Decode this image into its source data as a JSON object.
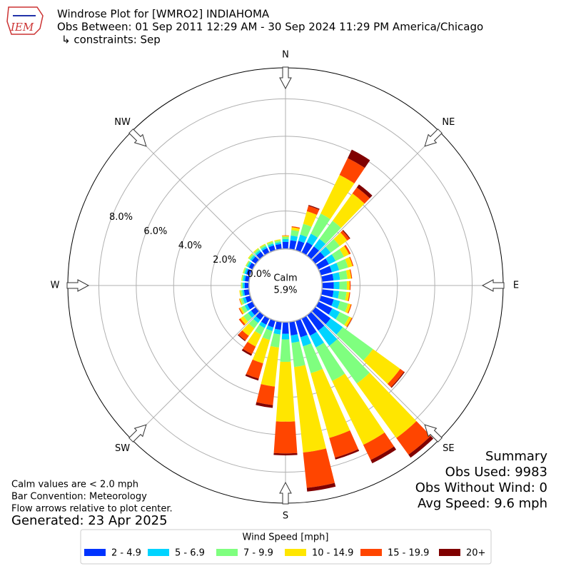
{
  "chart_data": {
    "type": "windrose",
    "title": "Windrose Plot for [WMRO2] INDIAHOMA",
    "subtitle": "Obs Between: 01 Sep 2011 12:29 AM - 30 Sep 2024 11:29 PM America/Chicago",
    "constraints": "↳ constraints: Sep",
    "logo": "IEM",
    "directions": [
      {
        "label": "N",
        "value": 0
      },
      {
        "label": "NE",
        "value": 45
      },
      {
        "label": "E",
        "value": 90
      },
      {
        "label": "SE",
        "value": 135
      },
      {
        "label": "S",
        "value": 180
      },
      {
        "label": "SW",
        "value": 225
      },
      {
        "label": "W",
        "value": 270
      },
      {
        "label": "NW",
        "value": 315
      }
    ],
    "x": [
      0,
      10,
      20,
      30,
      40,
      50,
      60,
      70,
      80,
      90,
      100,
      110,
      120,
      130,
      140,
      150,
      160,
      170,
      180,
      190,
      200,
      210,
      220,
      230,
      240,
      250,
      260,
      270,
      280,
      290,
      300,
      310,
      320,
      330,
      340,
      350
    ],
    "rlim": [
      0,
      9.66
    ],
    "rticks": [
      {
        "value": 0,
        "label": "0.0%"
      },
      {
        "value": 2,
        "label": "2.0%"
      },
      {
        "value": 4,
        "label": "4.0%"
      },
      {
        "value": 6,
        "label": "6.0%"
      },
      {
        "value": 8,
        "label": "8.0%"
      }
    ],
    "grid": true,
    "legend_title": "Wind Speed [mph]",
    "series": [
      {
        "name": "2 - 4.9",
        "color": "#0033ff",
        "values": [
          0.35,
          0.45,
          0.5,
          0.6,
          0.6,
          0.6,
          0.6,
          0.6,
          0.6,
          0.6,
          0.6,
          0.7,
          0.8,
          1.0,
          1.0,
          1.0,
          0.9,
          0.7,
          0.6,
          0.4,
          0.35,
          0.35,
          0.3,
          0.3,
          0.3,
          0.25,
          0.25,
          0.2,
          0.2,
          0.2,
          0.2,
          0.25,
          0.25,
          0.25,
          0.25,
          0.25
        ]
      },
      {
        "name": "5 - 6.9",
        "color": "#00d4ff",
        "values": [
          0.15,
          0.25,
          0.35,
          0.5,
          0.5,
          0.4,
          0.4,
          0.4,
          0.35,
          0.3,
          0.3,
          0.35,
          0.45,
          0.8,
          1.0,
          0.7,
          0.5,
          0.4,
          0.3,
          0.25,
          0.2,
          0.2,
          0.2,
          0.2,
          0.15,
          0.15,
          0.1,
          0.1,
          0.1,
          0.1,
          0.1,
          0.1,
          0.1,
          0.1,
          0.1,
          0.1
        ]
      },
      {
        "name": "7 - 9.9",
        "color": "#7fff7f",
        "values": [
          0.12,
          0.3,
          0.6,
          1.2,
          1.2,
          0.6,
          0.5,
          0.5,
          0.4,
          0.4,
          0.4,
          0.45,
          0.55,
          2.0,
          2.5,
          2.0,
          1.5,
          1.3,
          1.2,
          0.7,
          0.5,
          0.4,
          0.35,
          0.3,
          0.2,
          0.12,
          0.1,
          0.07,
          0.07,
          0.07,
          0.07,
          0.1,
          0.1,
          0.1,
          0.1,
          0.1
        ]
      },
      {
        "name": "10 - 14.9",
        "color": "#ffe600",
        "values": [
          0.06,
          0.15,
          0.7,
          2.3,
          1.8,
          0.5,
          0.3,
          0.25,
          0.2,
          0.15,
          0.15,
          0.15,
          0.15,
          1.8,
          3.6,
          3.8,
          3.6,
          4.6,
          3.2,
          2.1,
          1.3,
          0.7,
          0.5,
          0.2,
          0.1,
          0.06,
          0.05,
          0.03,
          0.03,
          0.03,
          0.03,
          0.05,
          0.05,
          0.05,
          0.05,
          0.05
        ]
      },
      {
        "name": "15 - 19.9",
        "color": "#ff4500",
        "values": [
          0.02,
          0.05,
          0.3,
          1.0,
          0.4,
          0.15,
          0.1,
          0.05,
          0.05,
          0.05,
          0.05,
          0.05,
          0.05,
          0.25,
          1.1,
          0.9,
          1.1,
          1.9,
          1.7,
          1.0,
          0.85,
          0.45,
          0.3,
          0.1,
          0.05,
          0.02,
          0,
          0,
          0,
          0,
          0,
          0,
          0,
          0,
          0,
          0
        ]
      },
      {
        "name": "20+",
        "color": "#800000",
        "values": [
          0,
          0,
          0.05,
          0.5,
          0.2,
          0.05,
          0,
          0,
          0,
          0,
          0,
          0,
          0,
          0.05,
          0.2,
          0.2,
          0.1,
          0.2,
          0.1,
          0.15,
          0.1,
          0.1,
          0.05,
          0,
          0,
          0,
          0,
          0,
          0,
          0,
          0,
          0,
          0,
          0,
          0,
          0
        ]
      }
    ],
    "calm": {
      "label": "Calm",
      "value": 5.9,
      "value_label": "5.9%"
    },
    "summary": {
      "title": "Summary",
      "lines": [
        "Obs Used: 9983",
        "Obs Without Wind: 0",
        "Avg Speed: 9.6 mph"
      ]
    },
    "notes": [
      "Calm values are < 2.0 mph",
      "Bar Convention: Meteorology",
      "Flow arrows relative to plot center."
    ],
    "generated": "Generated: 23 Apr 2025"
  }
}
